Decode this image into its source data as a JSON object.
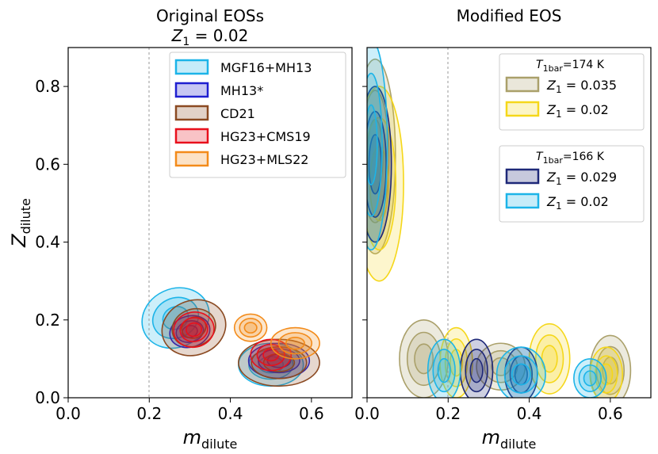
{
  "chart_data": [
    {
      "type": "contour",
      "title": "Original EOSs",
      "subtitle": "Z_1 = 0.02",
      "xlabel": "m_dilute",
      "ylabel": "Z_dilute",
      "xlim": [
        0.0,
        0.7
      ],
      "ylim": [
        0.0,
        0.9
      ],
      "xticks": [
        "0.0",
        "0.2",
        "0.4",
        "0.6"
      ],
      "yticks": [
        "0.0",
        "0.2",
        "0.4",
        "0.6",
        "0.8"
      ],
      "reference_line_x": 0.2,
      "legend_position": "top-right",
      "series": [
        {
          "name": "MGF16+MH13",
          "color": "#1cb4e8",
          "regions": [
            {
              "cx": 0.265,
              "cy": 0.205,
              "rx": 0.085,
              "ry": 0.075,
              "rot": -25
            },
            {
              "cx": 0.5,
              "cy": 0.085,
              "rx": 0.08,
              "ry": 0.055,
              "rot": 0
            }
          ]
        },
        {
          "name": "MH13*",
          "color": "#1f1fd0",
          "regions": [
            {
              "cx": 0.3,
              "cy": 0.17,
              "rx": 0.05,
              "ry": 0.04,
              "rot": -15
            },
            {
              "cx": 0.52,
              "cy": 0.095,
              "rx": 0.075,
              "ry": 0.045,
              "rot": 0
            }
          ]
        },
        {
          "name": "CD21",
          "color": "#8b4a22",
          "regions": [
            {
              "cx": 0.31,
              "cy": 0.18,
              "rx": 0.08,
              "ry": 0.07,
              "rot": -20
            },
            {
              "cx": 0.52,
              "cy": 0.09,
              "rx": 0.1,
              "ry": 0.06,
              "rot": 0
            }
          ]
        },
        {
          "name": "HG23+CMS19",
          "color": "#e8101c",
          "regions": [
            {
              "cx": 0.31,
              "cy": 0.175,
              "rx": 0.05,
              "ry": 0.045,
              "rot": -10
            },
            {
              "cx": 0.5,
              "cy": 0.11,
              "rx": 0.05,
              "ry": 0.04,
              "rot": 0
            }
          ]
        },
        {
          "name": "HG23+MLS22",
          "color": "#f38b1a",
          "regions": [
            {
              "cx": 0.45,
              "cy": 0.18,
              "rx": 0.04,
              "ry": 0.035,
              "rot": 0
            },
            {
              "cx": 0.56,
              "cy": 0.14,
              "rx": 0.06,
              "ry": 0.04,
              "rot": 0
            }
          ]
        }
      ]
    },
    {
      "type": "contour",
      "title": "Modified EOS",
      "xlabel": "m_dilute",
      "xlim": [
        0.0,
        0.7
      ],
      "ylim": [
        0.0,
        0.9
      ],
      "xticks": [
        "0.0",
        "0.2",
        "0.4",
        "0.6"
      ],
      "reference_line_x": 0.2,
      "legend_position": "top-right",
      "legend_groups": [
        {
          "title": "T_1bar=174 K",
          "entries": [
            {
              "label": "Z_1 = 0.035",
              "color": "#aaa06a"
            },
            {
              "label": "Z_1 = 0.02",
              "color": "#f5d71a"
            }
          ]
        },
        {
          "title": "T_1bar=166 K",
          "entries": [
            {
              "label": "Z_1 = 0.029",
              "color": "#1e2878"
            },
            {
              "label": "Z_1 = 0.02",
              "color": "#1cb4e8"
            }
          ]
        }
      ],
      "series": [
        {
          "name": "Z_1 = 0.035",
          "color": "#aaa06a",
          "regions": [
            {
              "cx": 0.02,
              "cy": 0.62,
              "rx": 0.05,
              "ry": 0.25,
              "rot": 0
            },
            {
              "cx": 0.14,
              "cy": 0.1,
              "rx": 0.06,
              "ry": 0.1,
              "rot": 0
            },
            {
              "cx": 0.33,
              "cy": 0.08,
              "rx": 0.06,
              "ry": 0.06,
              "rot": 0
            },
            {
              "cx": 0.6,
              "cy": 0.07,
              "rx": 0.05,
              "ry": 0.09,
              "rot": 0
            }
          ]
        },
        {
          "name": "Z_1 = 0.02",
          "color": "#f5d71a",
          "regions": [
            {
              "cx": 0.03,
              "cy": 0.55,
              "rx": 0.06,
              "ry": 0.25,
              "rot": 0
            },
            {
              "cx": 0.22,
              "cy": 0.09,
              "rx": 0.04,
              "ry": 0.09,
              "rot": 0
            },
            {
              "cx": 0.45,
              "cy": 0.1,
              "rx": 0.05,
              "ry": 0.09,
              "rot": 0
            },
            {
              "cx": 0.59,
              "cy": 0.06,
              "rx": 0.04,
              "ry": 0.07,
              "rot": 0
            }
          ]
        },
        {
          "name": "Z_1 = 0.029",
          "color": "#1e2878",
          "regions": [
            {
              "cx": 0.02,
              "cy": 0.6,
              "rx": 0.04,
              "ry": 0.2,
              "rot": 0
            },
            {
              "cx": 0.27,
              "cy": 0.07,
              "rx": 0.04,
              "ry": 0.08,
              "rot": 0
            },
            {
              "cx": 0.38,
              "cy": 0.06,
              "rx": 0.04,
              "ry": 0.07,
              "rot": 0
            }
          ]
        },
        {
          "name": "Z_1 = 0.02",
          "color": "#1cb4e8",
          "regions": [
            {
              "cx": 0.01,
              "cy": 0.65,
              "rx": 0.04,
              "ry": 0.27,
              "rot": 0
            },
            {
              "cx": 0.19,
              "cy": 0.07,
              "rx": 0.04,
              "ry": 0.08,
              "rot": 0
            },
            {
              "cx": 0.38,
              "cy": 0.06,
              "rx": 0.06,
              "ry": 0.07,
              "rot": 0
            },
            {
              "cx": 0.55,
              "cy": 0.05,
              "rx": 0.04,
              "ry": 0.05,
              "rot": 0
            }
          ]
        }
      ]
    }
  ]
}
